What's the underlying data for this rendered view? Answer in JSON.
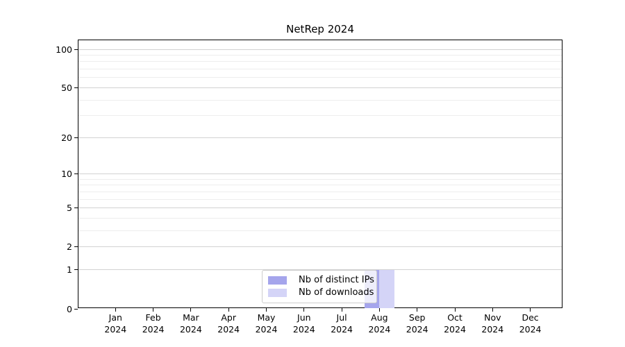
{
  "chart_data": {
    "type": "bar",
    "title": "NetRep 2024",
    "months": [
      "Jan",
      "Feb",
      "Mar",
      "Apr",
      "May",
      "Jun",
      "Jul",
      "Aug",
      "Sep",
      "Oct",
      "Nov",
      "Dec"
    ],
    "year": "2024",
    "x_categories": [
      "Jan 2024",
      "Feb 2024",
      "Mar 2024",
      "Apr 2024",
      "May 2024",
      "Jun 2024",
      "Jul 2024",
      "Aug 2024",
      "Sep 2024",
      "Oct 2024",
      "Nov 2024",
      "Dec 2024"
    ],
    "series": [
      {
        "name": "Nb of distinct IPs",
        "color": "#a5a5ec",
        "values": [
          0,
          0,
          0,
          0,
          0,
          0,
          0,
          1,
          0,
          0,
          0,
          0
        ]
      },
      {
        "name": "Nb of downloads",
        "color": "#d4d4f7",
        "values": [
          0,
          0,
          0,
          0,
          0,
          0,
          0,
          1,
          0,
          0,
          0,
          0
        ]
      }
    ],
    "y_axis": {
      "scale": "log1p",
      "major_ticks": [
        0,
        1,
        2,
        5,
        10,
        20,
        50,
        100
      ],
      "major_tick_labels": [
        "0",
        "1",
        "2",
        "5",
        "10",
        "20",
        "50",
        "100"
      ],
      "minor_ticks": [
        3,
        4,
        6,
        7,
        8,
        9,
        30,
        40,
        60,
        70,
        80,
        90
      ],
      "ylim_bottom": 0,
      "ylim_top_label": 100
    },
    "legend": {
      "position": "lower-center",
      "entries": [
        "Nb of distinct IPs",
        "Nb of downloads"
      ]
    },
    "colors": {
      "background": "#ffffff",
      "axis": "#000000",
      "grid_major": "#d2d2d2",
      "grid_minor": "#ededed",
      "series_distinct_ips": "#a5a5ec",
      "series_downloads": "#d4d4f7",
      "legend_border": "#cccccc"
    },
    "grid": "on"
  }
}
